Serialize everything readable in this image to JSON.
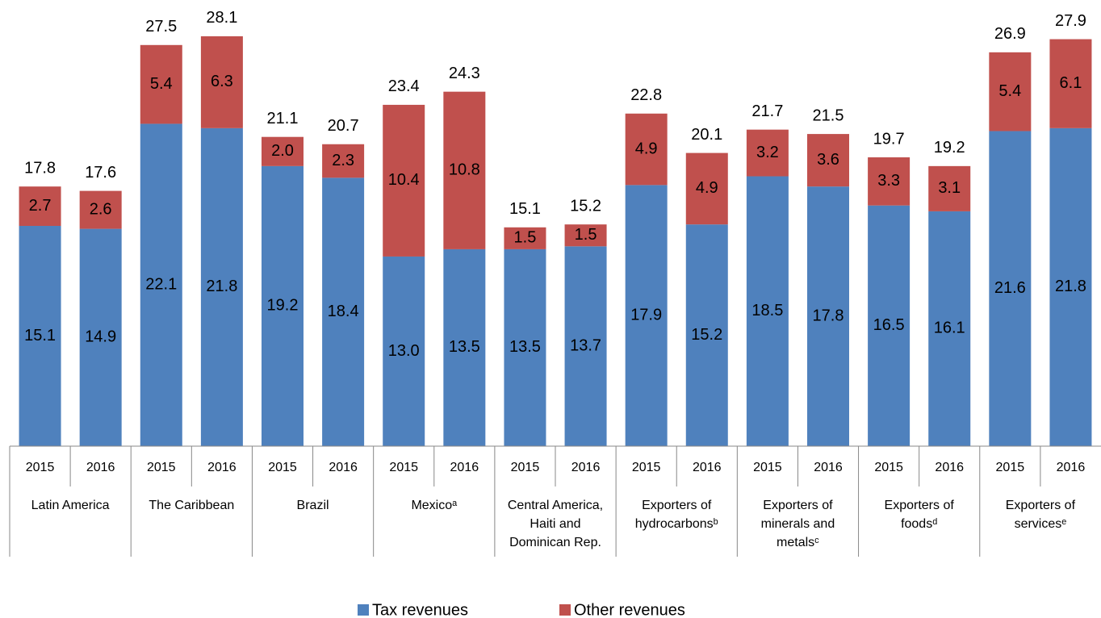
{
  "chart_data": {
    "type": "stacked-bar",
    "categories": [
      "2015",
      "2016",
      "2015",
      "2016",
      "2015",
      "2016",
      "2015",
      "2016",
      "2015",
      "2016",
      "2015",
      "2016",
      "2015",
      "2016",
      "2015",
      "2016",
      "2015",
      "2016"
    ],
    "groups": [
      [
        "Latin America"
      ],
      [
        "The Caribbean"
      ],
      [
        "Brazil"
      ],
      [
        "Mexicoᵃ"
      ],
      [
        "Central America,",
        "Haiti and",
        "Dominican Rep."
      ],
      [
        "Exporters of",
        "hydrocarbonsᵇ"
      ],
      [
        "Exporters of",
        "minerals and",
        "metalsᶜ"
      ],
      [
        "Exporters of",
        "foodsᵈ"
      ],
      [
        "Exporters of",
        "servicesᵉ"
      ]
    ],
    "series": [
      {
        "name": "Tax revenues",
        "color": "#4f81bd",
        "values": [
          15.1,
          14.9,
          22.1,
          21.8,
          19.2,
          18.4,
          13.0,
          13.5,
          13.5,
          13.7,
          17.9,
          15.2,
          18.5,
          17.8,
          16.5,
          16.1,
          21.6,
          21.8
        ],
        "value_labels": [
          "15.1",
          "14.9",
          "22.1",
          "21.8",
          "19.2",
          "18.4",
          "13.0",
          "13.5",
          "13.5",
          "13.7",
          "17.9",
          "15.2",
          "18.5",
          "17.8",
          "16.5",
          "16.1",
          "21.6",
          "21.8"
        ]
      },
      {
        "name": "Other revenues",
        "color": "#c0504d",
        "values": [
          2.7,
          2.6,
          5.4,
          6.3,
          2.0,
          2.3,
          10.4,
          10.8,
          1.5,
          1.5,
          4.9,
          4.9,
          3.2,
          3.6,
          3.3,
          3.1,
          5.4,
          6.1
        ],
        "value_labels": [
          "2.7",
          "2.6",
          "5.4",
          "6.3",
          "2.0",
          "2.3",
          "10.4",
          "10.8",
          "1.5",
          "1.5",
          "4.9",
          "4.9",
          "3.2",
          "3.6",
          "3.3",
          "3.1",
          "5.4",
          "6.1"
        ]
      }
    ],
    "totals": [
      17.8,
      17.6,
      27.5,
      28.1,
      21.1,
      20.7,
      23.4,
      24.3,
      15.1,
      15.2,
      22.8,
      20.1,
      21.7,
      21.5,
      19.7,
      19.2,
      26.9,
      27.9
    ]
  }
}
